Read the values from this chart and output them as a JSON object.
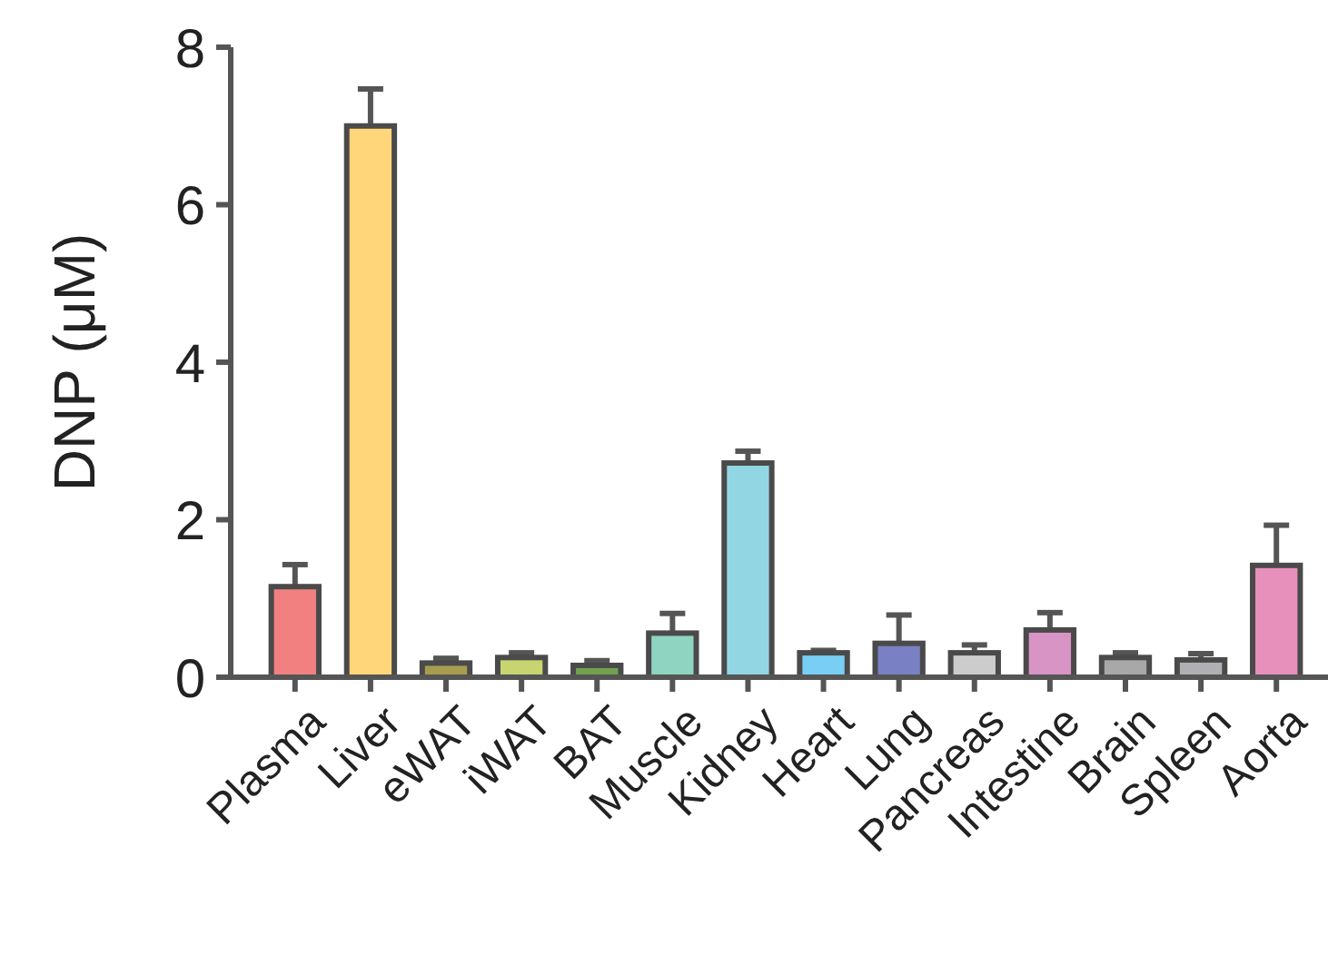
{
  "chart_data": {
    "type": "bar",
    "ylabel": "DNP (μM)",
    "categories": [
      "Plasma",
      "Liver",
      "eWAT",
      "iWAT",
      "BAT",
      "Muscle",
      "Kidney",
      "Heart",
      "Lung",
      "Pancreas",
      "Intestine",
      "Brain",
      "Spleen",
      "Aorta"
    ],
    "values": [
      1.15,
      7.0,
      0.18,
      0.25,
      0.15,
      0.56,
      2.72,
      0.31,
      0.43,
      0.31,
      0.6,
      0.25,
      0.22,
      1.42
    ],
    "errors": [
      0.28,
      0.47,
      0.06,
      0.06,
      0.06,
      0.25,
      0.15,
      0.03,
      0.36,
      0.1,
      0.22,
      0.06,
      0.08,
      0.51
    ],
    "colors": [
      "#f28080",
      "#ffd67a",
      "#a89c50",
      "#c8d470",
      "#72a050",
      "#8ed4c0",
      "#92d6e4",
      "#78cef4",
      "#7a80c4",
      "#cccccc",
      "#d894c4",
      "#a8a8a8",
      "#b0b0b4",
      "#e890bc"
    ],
    "ylim": [
      0,
      8
    ],
    "yticks": [
      0,
      2,
      4,
      6,
      8
    ],
    "grid": false
  }
}
